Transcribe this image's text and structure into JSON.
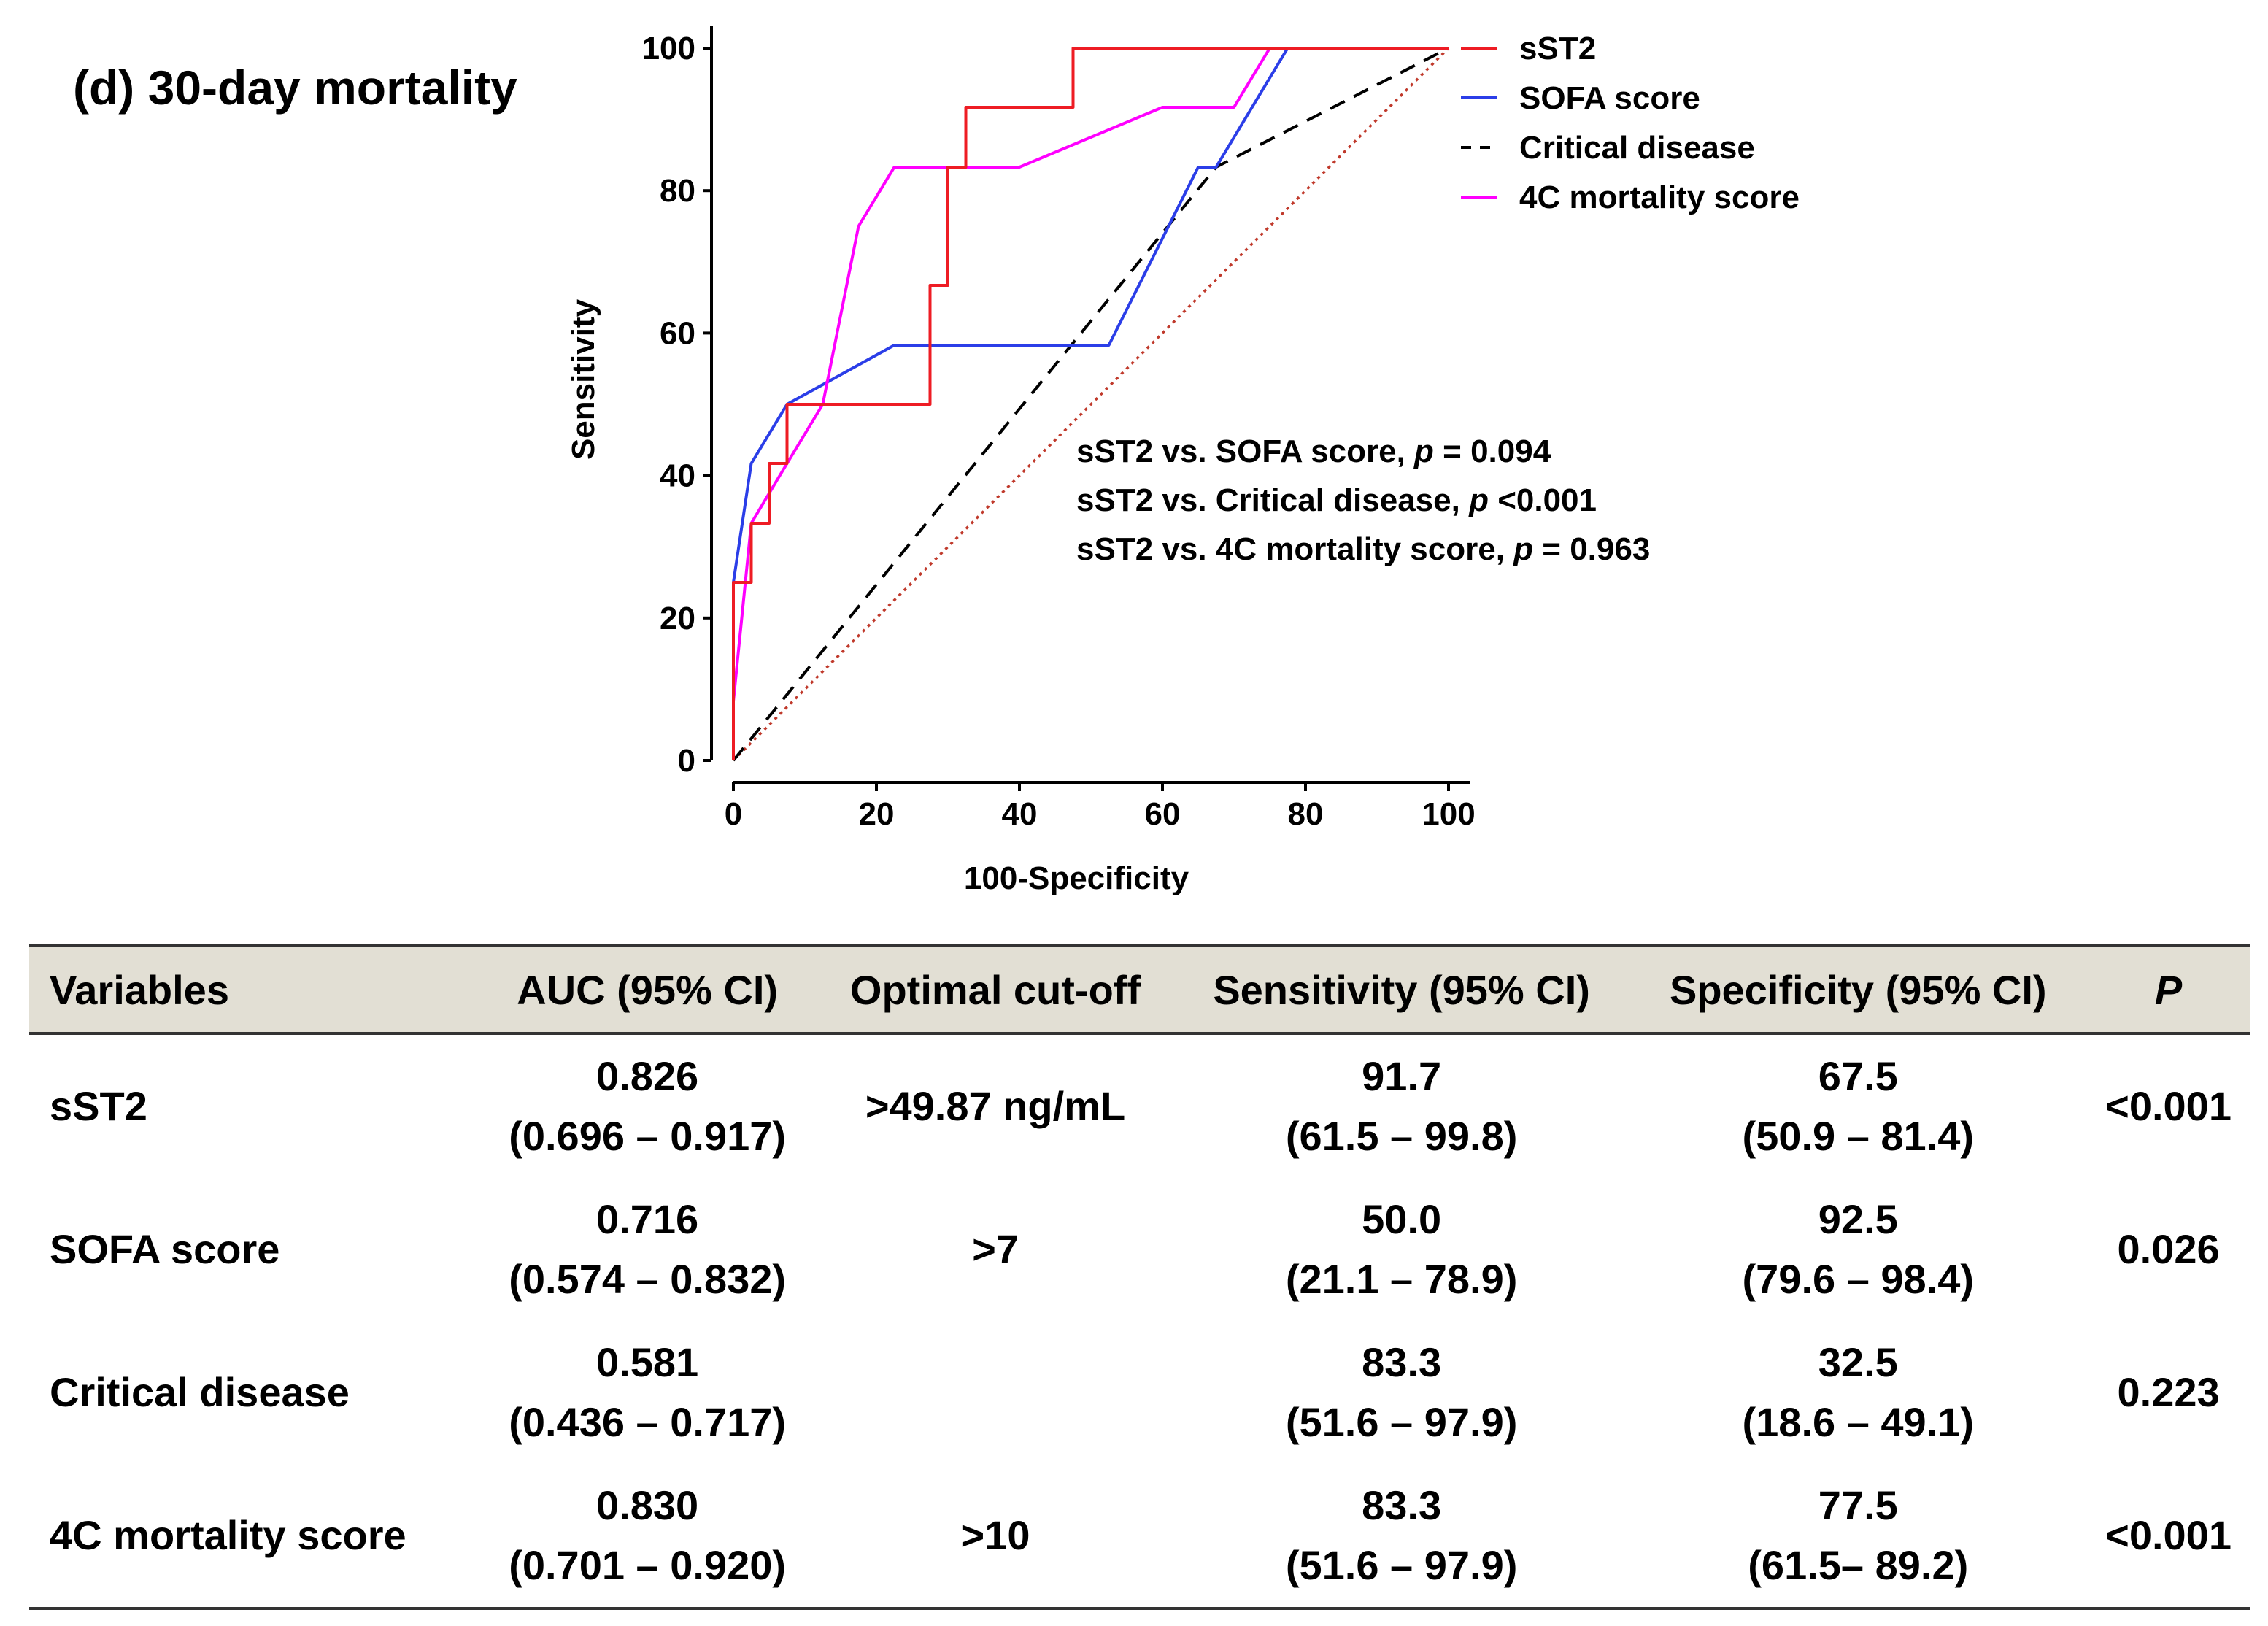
{
  "figure_title": "(d) 30-day mortality",
  "chart_data": {
    "type": "line",
    "title": "(d) 30-day mortality",
    "xlabel": "100-Specificity",
    "ylabel": "Sensitivity",
    "xlim": [
      0,
      100
    ],
    "ylim": [
      0,
      100
    ],
    "xticks": [
      "0",
      "20",
      "40",
      "60",
      "80",
      "100"
    ],
    "yticks": [
      "0",
      "20",
      "40",
      "60",
      "80",
      "100"
    ],
    "legend_position": "top-right",
    "series": [
      {
        "name": "sST2",
        "color": "#ee1c24",
        "style": "solid",
        "points": [
          [
            0,
            0
          ],
          [
            0,
            25
          ],
          [
            2.5,
            25
          ],
          [
            2.5,
            33.3
          ],
          [
            5,
            33.3
          ],
          [
            5,
            41.7
          ],
          [
            7.5,
            41.7
          ],
          [
            7.5,
            50
          ],
          [
            27.5,
            50
          ],
          [
            27.5,
            66.7
          ],
          [
            30,
            66.7
          ],
          [
            30,
            83.3
          ],
          [
            32.5,
            83.3
          ],
          [
            32.5,
            91.7
          ],
          [
            47.5,
            91.7
          ],
          [
            47.5,
            100
          ],
          [
            100,
            100
          ]
        ]
      },
      {
        "name": "SOFA score",
        "color": "#2b3ee8",
        "style": "solid",
        "points": [
          [
            0,
            0
          ],
          [
            0,
            25
          ],
          [
            2.5,
            41.7
          ],
          [
            7.5,
            50
          ],
          [
            22.5,
            58.3
          ],
          [
            52.5,
            58.3
          ],
          [
            65,
            83.3
          ],
          [
            67.5,
            83.3
          ],
          [
            77.5,
            100
          ],
          [
            100,
            100
          ]
        ]
      },
      {
        "name": "Critical disease",
        "color": "#000000",
        "style": "dashed",
        "points": [
          [
            0,
            0
          ],
          [
            67.5,
            83.3
          ],
          [
            100,
            100
          ]
        ]
      },
      {
        "name": "4C mortality score",
        "color": "#ff00ff",
        "style": "solid",
        "points": [
          [
            0,
            0
          ],
          [
            0,
            8.3
          ],
          [
            2.5,
            33.3
          ],
          [
            7.5,
            41.7
          ],
          [
            12.5,
            50
          ],
          [
            17.5,
            75
          ],
          [
            22.5,
            83.3
          ],
          [
            40,
            83.3
          ],
          [
            60,
            91.7
          ],
          [
            70,
            91.7
          ],
          [
            75,
            100
          ],
          [
            100,
            100
          ]
        ]
      },
      {
        "name": "Reference",
        "color": "#c0392b",
        "style": "dotted",
        "in_legend": false,
        "points": [
          [
            0,
            0
          ],
          [
            100,
            100
          ]
        ]
      }
    ],
    "annotations": [
      {
        "prefix": "sST2 vs. SOFA score, ",
        "p": "p",
        "suffix": " = 0.094"
      },
      {
        "prefix": "sST2 vs. Critical disease, ",
        "p": "p",
        "suffix": " <0.001"
      },
      {
        "prefix": "sST2 vs. 4C mortality score, ",
        "p": "p",
        "suffix": " = 0.963"
      }
    ]
  },
  "table": {
    "headers": [
      "Variables",
      "AUC (95% CI)",
      "Optimal cut-off",
      "Sensitivity (95% CI)",
      "Specificity (95% CI)",
      "P"
    ],
    "rows": [
      {
        "variable": "sST2",
        "auc": "0.826",
        "auc_ci": "(0.696 – 0.917)",
        "cutoff": ">49.87 ng/mL",
        "sens": "91.7",
        "sens_ci": "(61.5 – 99.8)",
        "spec": "67.5",
        "spec_ci": "(50.9 – 81.4)",
        "p": "<0.001"
      },
      {
        "variable": "SOFA score",
        "auc": "0.716",
        "auc_ci": "(0.574 – 0.832)",
        "cutoff": ">7",
        "sens": "50.0",
        "sens_ci": "(21.1 – 78.9)",
        "spec": "92.5",
        "spec_ci": "(79.6 – 98.4)",
        "p": "0.026"
      },
      {
        "variable": "Critical disease",
        "auc": "0.581",
        "auc_ci": "(0.436 – 0.717)",
        "cutoff": "",
        "sens": "83.3",
        "sens_ci": "(51.6 – 97.9)",
        "spec": "32.5",
        "spec_ci": "(18.6 – 49.1)",
        "p": "0.223"
      },
      {
        "variable": "4C mortality score",
        "auc": "0.830",
        "auc_ci": "(0.701 – 0.920)",
        "cutoff": ">10",
        "sens": "83.3",
        "sens_ci": "(51.6 – 97.9)",
        "spec": "77.5",
        "spec_ci": "(61.5– 89.2)",
        "p": "<0.001"
      }
    ]
  }
}
